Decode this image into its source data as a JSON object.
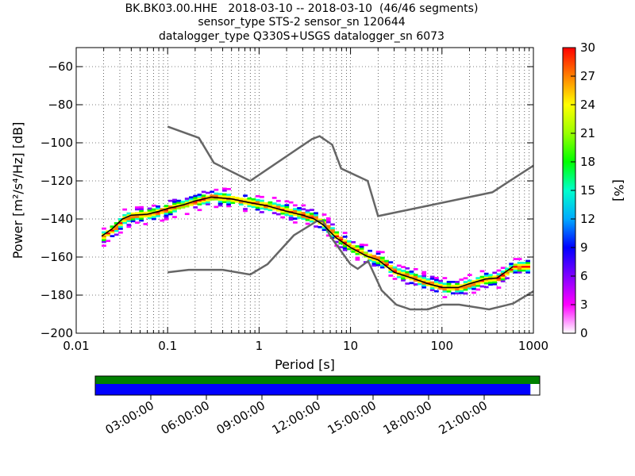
{
  "title": {
    "line1": "BK.BK03.00.HHE   2018-03-10 -- 2018-03-10  (46/46 segments)",
    "line2": "sensor_type STS-2 sensor_sn 120644",
    "line3": "datalogger_type Q330S+USGS datalogger_sn 6073"
  },
  "chart_data": {
    "type": "heatmap",
    "xlabel": "Period [s]",
    "ylabel": "Power [m²/s⁴/Hz] [dB]",
    "x_scale": "log",
    "xlim": [
      0.01,
      1000
    ],
    "ylim": [
      -200,
      -50
    ],
    "x_ticks": [
      0.01,
      0.1,
      1,
      10,
      100,
      1000
    ],
    "x_tick_labels": [
      "0.01",
      "0.1",
      "1",
      "10",
      "100",
      "1000"
    ],
    "y_ticks": [
      -200,
      -180,
      -160,
      -140,
      -120,
      -100,
      -80,
      -60
    ],
    "y_tick_labels": [
      "−200",
      "−180",
      "−160",
      "−140",
      "−120",
      "−100",
      "−80",
      "−60"
    ],
    "grid": true,
    "colorbar": {
      "label": "[%]",
      "range": [
        0,
        30
      ],
      "ticks": [
        0,
        3,
        6,
        9,
        12,
        15,
        18,
        21,
        24,
        27,
        30
      ],
      "tick_labels": [
        "0",
        "3",
        "6",
        "9",
        "12",
        "15",
        "18",
        "21",
        "24",
        "27",
        "30"
      ]
    },
    "series": [
      {
        "kind": "noise_model_high",
        "color": "#666666",
        "x": [
          0.1,
          0.22,
          0.32,
          0.8,
          3.8,
          4.6,
          6.3,
          7.9,
          15.4,
          20,
          354.8,
          1000
        ],
        "y": [
          -91.5,
          -97.4,
          -110.5,
          -120,
          -98,
          -96.5,
          -101,
          -113.5,
          -120,
          -138.5,
          -126,
          -112
        ]
      },
      {
        "kind": "noise_model_low",
        "color": "#666666",
        "x": [
          0.1,
          0.17,
          0.4,
          0.8,
          1.24,
          2.4,
          4.3,
          5.0,
          6.0,
          10.0,
          12.0,
          15.6,
          21.9,
          31.6,
          45.0,
          70.0,
          101.0,
          154.0,
          328.0,
          600.0,
          1000.0
        ],
        "y": [
          -168,
          -166.7,
          -166.7,
          -169.2,
          -163.7,
          -148.6,
          -141.1,
          -141.1,
          -149.0,
          -163.8,
          -166.2,
          -162.1,
          -177.5,
          -185.0,
          -187.5,
          -187.5,
          -185.0,
          -185.0,
          -187.5,
          -184.4,
          -178.0
        ]
      },
      {
        "kind": "mean_psd",
        "color": "#000000",
        "x": [
          0.019,
          0.025,
          0.032,
          0.04,
          0.06,
          0.08,
          0.1,
          0.15,
          0.2,
          0.3,
          0.5,
          0.8,
          1.2,
          2,
          3,
          4,
          5,
          7,
          10,
          15,
          20,
          30,
          50,
          70,
          100,
          150,
          200,
          300,
          400,
          600
        ],
        "y": [
          -149,
          -145,
          -140,
          -138,
          -137.5,
          -136,
          -134.5,
          -132.5,
          -130.5,
          -128.5,
          -129.5,
          -131.5,
          -133,
          -136,
          -138,
          -140,
          -143,
          -150,
          -155,
          -159.5,
          -161.5,
          -168,
          -171.5,
          -174,
          -176,
          -176,
          -174,
          -171.5,
          -171,
          -165
        ]
      }
    ],
    "time_axis": {
      "tick_labels": [
        "03:00:00",
        "06:00:00",
        "09:00:00",
        "12:00:00",
        "15:00:00",
        "18:00:00",
        "21:00:00"
      ],
      "coverage_color": "#008000",
      "data_color": "#0000ff",
      "data_fraction": 0.979
    }
  }
}
